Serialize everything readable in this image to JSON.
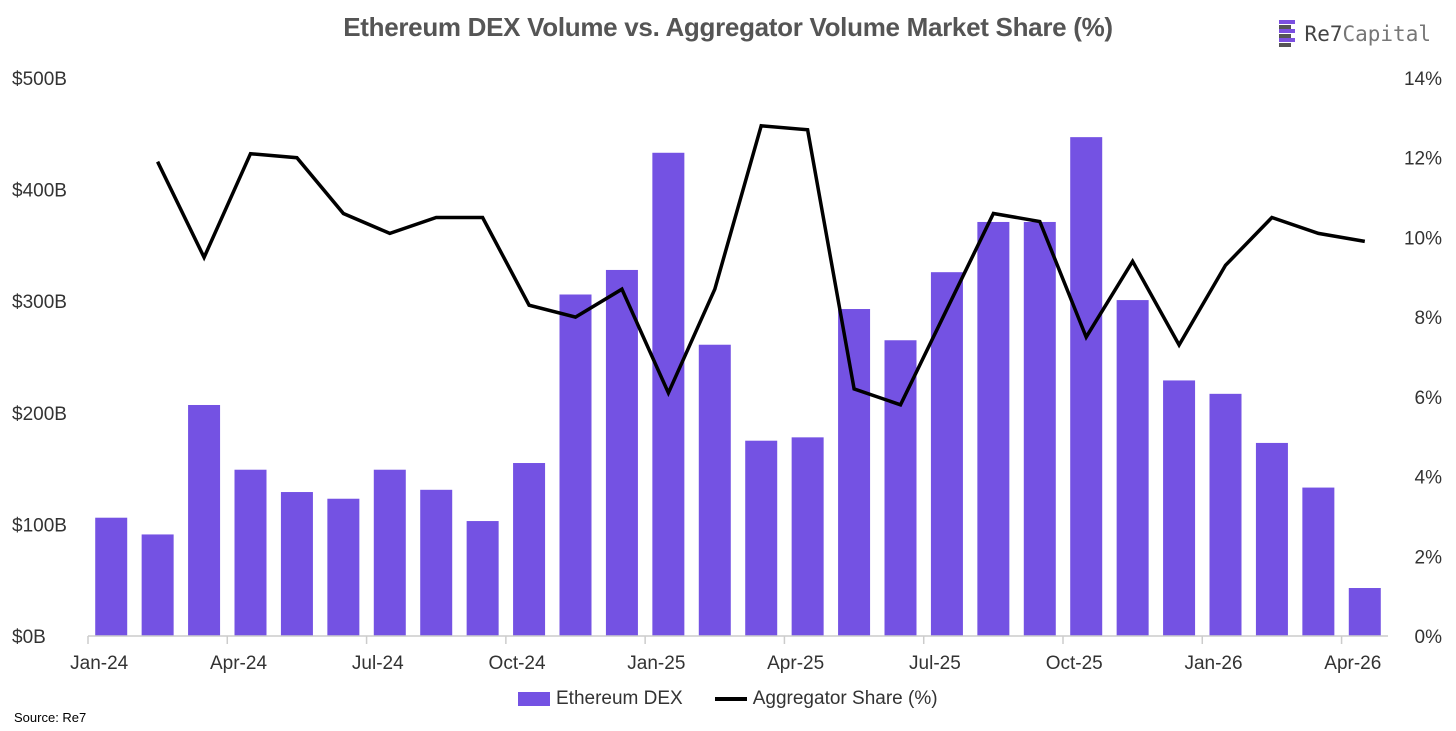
{
  "title": "Ethereum DEX Volume vs. Aggregator Volume Market Share (%)",
  "logo": {
    "brand": "Re7",
    "suffix": "Capital",
    "mark_colors": [
      "#7b4fe0",
      "#555555",
      "#7b4fe0",
      "#555555",
      "#7b4fe0",
      "#555555"
    ]
  },
  "source": "Source: Re7",
  "colors": {
    "bar": "#7452e3",
    "line": "#000000",
    "axis": "#cccccc"
  },
  "chart_data": {
    "type": "bar+line",
    "categories": [
      "Jan-24",
      "Feb-24",
      "Mar-24",
      "Apr-24",
      "May-24",
      "Jun-24",
      "Jul-24",
      "Aug-24",
      "Sep-24",
      "Oct-24",
      "Nov-24",
      "Dec-24",
      "Jan-25",
      "Feb-25",
      "Mar-25",
      "Apr-25",
      "May-25",
      "Jun-25",
      "Jul-25",
      "Aug-25",
      "Sep-25",
      "Oct-25",
      "Nov-25",
      "Dec-25",
      "Jan-26",
      "Feb-26",
      "Mar-26",
      "Apr-26"
    ],
    "x_tick_labels": [
      "Jan-24",
      "Apr-24",
      "Jul-24",
      "Oct-24",
      "Jan-25",
      "Apr-25",
      "Jul-25",
      "Oct-25",
      "Jan-26",
      "Apr-26"
    ],
    "x_tick_every": 3,
    "series": [
      {
        "name": "Ethereum DEX",
        "type": "bar",
        "axis": "left",
        "values": [
          106,
          91,
          207,
          149,
          129,
          123,
          149,
          131,
          103,
          155,
          306,
          328,
          433,
          261,
          175,
          178,
          293,
          265,
          326,
          371,
          371,
          447,
          301,
          229,
          217,
          173,
          133,
          43
        ]
      },
      {
        "name": "Aggregator Share (%)",
        "type": "line",
        "axis": "right",
        "values": [
          null,
          11.9,
          9.5,
          12.1,
          12.0,
          10.6,
          10.1,
          10.5,
          10.5,
          8.3,
          8.0,
          8.7,
          6.1,
          8.7,
          12.8,
          12.7,
          6.2,
          5.8,
          8.2,
          10.6,
          10.4,
          7.5,
          9.4,
          7.3,
          9.3,
          10.5,
          10.1,
          9.9
        ]
      }
    ],
    "y_left": {
      "ticks": [
        "$0B",
        "$100B",
        "$200B",
        "$300B",
        "$400B",
        "$500B"
      ],
      "range": [
        0,
        500
      ],
      "unit": "$B"
    },
    "y_right": {
      "ticks": [
        "0%",
        "2%",
        "4%",
        "6%",
        "8%",
        "10%",
        "12%",
        "14%"
      ],
      "range": [
        0,
        14
      ],
      "unit": "%"
    },
    "legend": {
      "position": "bottom",
      "items": [
        "Ethereum DEX",
        "Aggregator Share (%)"
      ]
    },
    "grid": false
  }
}
